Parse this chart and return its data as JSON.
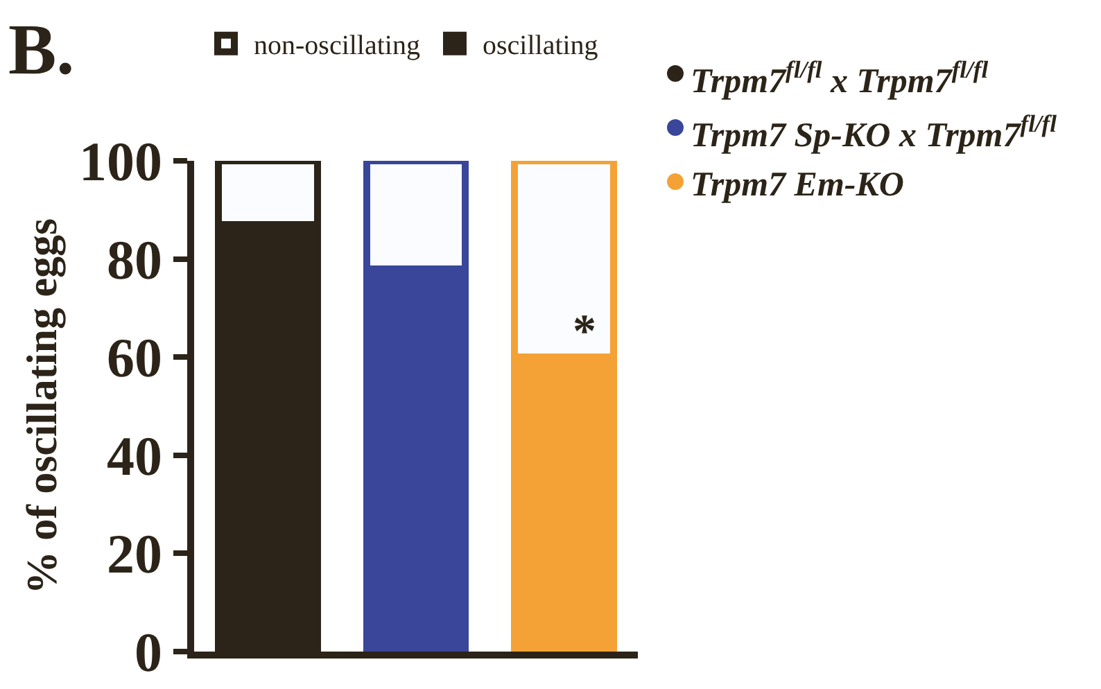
{
  "chart_data": {
    "type": "bar",
    "stacked": true,
    "ylabel": "% of oscillating eggs",
    "categories": [
      null,
      null,
      null
    ],
    "series": [
      {
        "name": "oscillating",
        "colors": [
          "#2c2418",
          "#3a4699",
          "#f4a236"
        ],
        "values": [
          87,
          78,
          60
        ]
      },
      {
        "name": "non-oscillating",
        "color": "#fafcff",
        "values": [
          13,
          22,
          40
        ]
      }
    ],
    "ylim": [
      0,
      100
    ],
    "yticks": [
      0,
      20,
      40,
      60,
      80,
      100
    ],
    "grid": false,
    "legend": "top",
    "annotations": [
      "B.",
      "*",
      "Trpm7$^{fl/fl}$ x Trpm7$^{fl/fl}$",
      "Trpm7 Sp-KO x Trpm7$^{fl/fl}$",
      "Trpm7 Em-KO"
    ]
  }
}
